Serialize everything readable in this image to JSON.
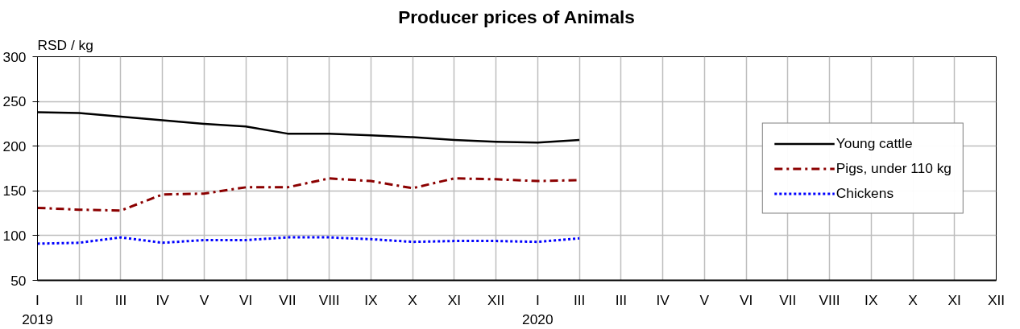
{
  "chart_data": {
    "type": "line",
    "title": "Producer prices of Animals",
    "ylabel": "RSD / kg",
    "categories": [
      "I\n2019",
      "II",
      "III",
      "IV",
      "V",
      "VI",
      "VII",
      "VIII",
      "IX",
      "X",
      "XI",
      "XII",
      "I\n2020",
      "III",
      "III",
      "IV",
      "V",
      "VI",
      "VII",
      "VIII",
      "IX",
      "X",
      "XI",
      "XII"
    ],
    "series": [
      {
        "name": "Young cattle",
        "color": "#000000",
        "line_style": "solid",
        "values": [
          238,
          237,
          233,
          229,
          225,
          222,
          214,
          214,
          212,
          210,
          207,
          205,
          204,
          207,
          null,
          null,
          null,
          null,
          null,
          null,
          null,
          null,
          null,
          null
        ]
      },
      {
        "name": "Pigs, under 110 kg",
        "color": "#8b0000",
        "line_style": "dashdot",
        "values": [
          131,
          129,
          128,
          146,
          147,
          154,
          154,
          164,
          161,
          153,
          164,
          163,
          161,
          162,
          null,
          null,
          null,
          null,
          null,
          null,
          null,
          null,
          null,
          null
        ]
      },
      {
        "name": "Chickens",
        "color": "#0000ff",
        "line_style": "dotted",
        "values": [
          91,
          92,
          98,
          92,
          95,
          95,
          98,
          98,
          96,
          93,
          94,
          94,
          93,
          97,
          null,
          null,
          null,
          null,
          null,
          null,
          null,
          null,
          null,
          null
        ]
      }
    ],
    "ylim": [
      50,
      300
    ],
    "yticks": [
      50,
      100,
      150,
      200,
      250,
      300
    ],
    "grid": true,
    "legend": "right",
    "marker": "none"
  }
}
